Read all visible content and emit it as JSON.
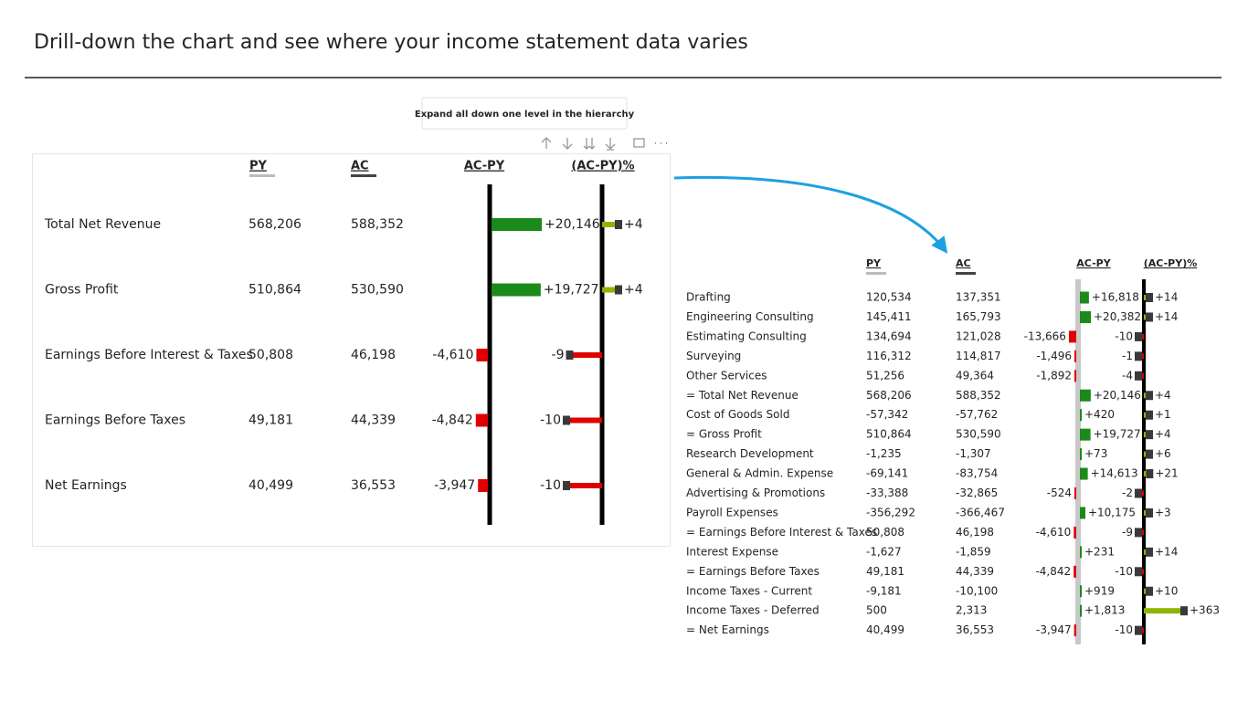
{
  "header": {
    "title": "Drill-down the chart and see where your income statement data varies"
  },
  "tooltip": "Expand all down one level in the hierarchy",
  "tables": [
    {
      "columns": [
        "PY",
        "AC",
        "AC-PY",
        "(AC-PY)%"
      ],
      "rows": [
        {
          "name": "Total Net Revenue",
          "py": "568,206",
          "ac": "588,352",
          "delta": {
            "value": 20146,
            "label": "+20,146"
          },
          "pct": {
            "value": 4,
            "label": "+4"
          }
        },
        {
          "name": "Gross Profit",
          "py": "510,864",
          "ac": "530,590",
          "delta": {
            "value": 19727,
            "label": "+19,727"
          },
          "pct": {
            "value": 4,
            "label": "+4"
          }
        },
        {
          "name": "Earnings Before Interest & Taxes",
          "py": "50,808",
          "ac": "46,198",
          "delta": {
            "value": -4610,
            "label": "-4,610"
          },
          "pct": {
            "value": -9,
            "label": "-9"
          }
        },
        {
          "name": "Earnings Before Taxes",
          "py": "49,181",
          "ac": "44,339",
          "delta": {
            "value": -4842,
            "label": "-4,842"
          },
          "pct": {
            "value": -10,
            "label": "-10"
          }
        },
        {
          "name": "Net Earnings",
          "py": "40,499",
          "ac": "36,553",
          "delta": {
            "value": -3947,
            "label": "-3,947"
          },
          "pct": {
            "value": -10,
            "label": "-10"
          }
        }
      ]
    },
    {
      "columns": [
        "PY",
        "AC",
        "AC-PY",
        "(AC-PY)%"
      ],
      "rows": [
        {
          "name": "Drafting",
          "py": "120,534",
          "ac": "137,351",
          "delta": {
            "value": 16818,
            "label": "+16,818"
          },
          "pct": {
            "value": 14,
            "label": "+14"
          }
        },
        {
          "name": "Engineering Consulting",
          "py": "145,411",
          "ac": "165,793",
          "delta": {
            "value": 20382,
            "label": "+20,382"
          },
          "pct": {
            "value": 14,
            "label": "+14"
          }
        },
        {
          "name": "Estimating Consulting",
          "py": "134,694",
          "ac": "121,028",
          "delta": {
            "value": -13666,
            "label": "-13,666"
          },
          "pct": {
            "value": -10,
            "label": "-10"
          }
        },
        {
          "name": "Surveying",
          "py": "116,312",
          "ac": "114,817",
          "delta": {
            "value": -1496,
            "label": "-1,496"
          },
          "pct": {
            "value": -1,
            "label": "-1"
          }
        },
        {
          "name": "Other Services",
          "py": "51,256",
          "ac": "49,364",
          "delta": {
            "value": -1892,
            "label": "-1,892"
          },
          "pct": {
            "value": -4,
            "label": "-4"
          }
        },
        {
          "name": "= Total Net Revenue",
          "py": "568,206",
          "ac": "588,352",
          "delta": {
            "value": 20146,
            "label": "+20,146"
          },
          "pct": {
            "value": 4,
            "label": "+4"
          }
        },
        {
          "name": "Cost of Goods Sold",
          "py": "-57,342",
          "ac": "-57,762",
          "delta": {
            "value": 420,
            "label": "+420"
          },
          "pct": {
            "value": 1,
            "label": "+1"
          }
        },
        {
          "name": "= Gross Profit",
          "py": "510,864",
          "ac": "530,590",
          "delta": {
            "value": 19727,
            "label": "+19,727"
          },
          "pct": {
            "value": 4,
            "label": "+4"
          }
        },
        {
          "name": "Research Development",
          "py": "-1,235",
          "ac": "-1,307",
          "delta": {
            "value": 73,
            "label": "+73"
          },
          "pct": {
            "value": 6,
            "label": "+6"
          }
        },
        {
          "name": "General & Admin. Expense",
          "py": "-69,141",
          "ac": "-83,754",
          "delta": {
            "value": 14613,
            "label": "+14,613"
          },
          "pct": {
            "value": 21,
            "label": "+21"
          }
        },
        {
          "name": "Advertising & Promotions",
          "py": "-33,388",
          "ac": "-32,865",
          "delta": {
            "value": -524,
            "label": "-524"
          },
          "pct": {
            "value": -2,
            "label": "-2"
          }
        },
        {
          "name": "Payroll Expenses",
          "py": "-356,292",
          "ac": "-366,467",
          "delta": {
            "value": 10175,
            "label": "+10,175"
          },
          "pct": {
            "value": 3,
            "label": "+3"
          }
        },
        {
          "name": "= Earnings Before Interest & Taxes",
          "py": "50,808",
          "ac": "46,198",
          "delta": {
            "value": -4610,
            "label": "-4,610"
          },
          "pct": {
            "value": -9,
            "label": "-9"
          }
        },
        {
          "name": "Interest Expense",
          "py": "-1,627",
          "ac": "-1,859",
          "delta": {
            "value": 231,
            "label": "+231"
          },
          "pct": {
            "value": 14,
            "label": "+14"
          }
        },
        {
          "name": "= Earnings Before Taxes",
          "py": "49,181",
          "ac": "44,339",
          "delta": {
            "value": -4842,
            "label": "-4,842"
          },
          "pct": {
            "value": -10,
            "label": "-10"
          }
        },
        {
          "name": "Income Taxes - Current",
          "py": "-9,181",
          "ac": "-10,100",
          "delta": {
            "value": 919,
            "label": "+919"
          },
          "pct": {
            "value": 10,
            "label": "+10"
          }
        },
        {
          "name": "Income Taxes - Deferred",
          "py": "500",
          "ac": "2,313",
          "delta": {
            "value": 1813,
            "label": "+1,813"
          },
          "pct": {
            "value": 363,
            "label": "+363"
          }
        },
        {
          "name": "= Net Earnings",
          "py": "40,499",
          "ac": "36,553",
          "delta": {
            "value": -3947,
            "label": "-3,947"
          },
          "pct": {
            "value": -10,
            "label": "-10"
          }
        }
      ]
    }
  ]
}
